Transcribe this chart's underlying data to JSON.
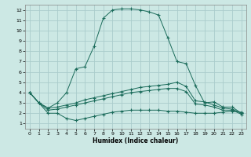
{
  "xlabel": "Humidex (Indice chaleur)",
  "bg_color": "#cce8e4",
  "grid_color": "#aacccc",
  "line_color": "#1a6b5a",
  "xlim": [
    -0.5,
    23.5
  ],
  "ylim": [
    0.5,
    12.5
  ],
  "xticks": [
    0,
    1,
    2,
    3,
    4,
    5,
    6,
    7,
    8,
    9,
    10,
    11,
    12,
    13,
    14,
    15,
    16,
    17,
    18,
    19,
    20,
    21,
    22,
    23
  ],
  "yticks": [
    1,
    2,
    3,
    4,
    5,
    6,
    7,
    8,
    9,
    10,
    11,
    12
  ],
  "line1_x": [
    0,
    1,
    2,
    3,
    4,
    5,
    6,
    7,
    8,
    9,
    10,
    11,
    12,
    13,
    14,
    15,
    16,
    17,
    18,
    19,
    20,
    21,
    22,
    23
  ],
  "line1_y": [
    4.0,
    3.0,
    2.5,
    3.0,
    4.0,
    6.3,
    6.5,
    8.5,
    11.2,
    12.0,
    12.1,
    12.1,
    12.0,
    11.8,
    11.5,
    9.3,
    7.0,
    6.8,
    4.7,
    3.0,
    3.1,
    2.6,
    2.6,
    2.0
  ],
  "line2_x": [
    0,
    1,
    2,
    3,
    4,
    5,
    6,
    7,
    8,
    9,
    10,
    11,
    12,
    13,
    14,
    15,
    16,
    17,
    18,
    19,
    20,
    21,
    22,
    23
  ],
  "line2_y": [
    4.0,
    3.0,
    2.5,
    2.6,
    2.8,
    3.0,
    3.3,
    3.5,
    3.7,
    3.9,
    4.1,
    4.3,
    4.5,
    4.6,
    4.7,
    4.8,
    5.0,
    4.6,
    3.2,
    3.1,
    2.8,
    2.5,
    2.4,
    2.0
  ],
  "line3_x": [
    0,
    1,
    2,
    3,
    4,
    5,
    6,
    7,
    8,
    9,
    10,
    11,
    12,
    13,
    14,
    15,
    16,
    17,
    18,
    19,
    20,
    21,
    22,
    23
  ],
  "line3_y": [
    4.0,
    3.0,
    2.3,
    2.4,
    2.6,
    2.8,
    3.0,
    3.2,
    3.4,
    3.6,
    3.8,
    4.0,
    4.1,
    4.2,
    4.3,
    4.4,
    4.4,
    4.1,
    2.9,
    2.8,
    2.6,
    2.3,
    2.3,
    1.9
  ],
  "line4_x": [
    0,
    1,
    2,
    3,
    4,
    5,
    6,
    7,
    8,
    9,
    10,
    11,
    12,
    13,
    14,
    15,
    16,
    17,
    18,
    19,
    20,
    21,
    22,
    23
  ],
  "line4_y": [
    4.0,
    3.0,
    2.0,
    2.0,
    1.5,
    1.3,
    1.5,
    1.7,
    1.9,
    2.1,
    2.2,
    2.3,
    2.3,
    2.3,
    2.3,
    2.2,
    2.2,
    2.1,
    2.0,
    2.0,
    2.0,
    2.1,
    2.2,
    2.1
  ]
}
